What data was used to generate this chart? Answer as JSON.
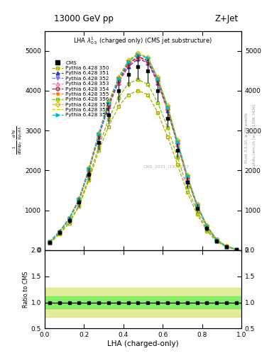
{
  "title_top": "13000 GeV pp",
  "title_right": "Z+Jet",
  "plot_title": "LHA $\\lambda^{1}_{0.5}$ (charged only) (CMS jet substructure)",
  "xlabel": "LHA (charged-only)",
  "ylabel_ratio": "Ratio to CMS",
  "right_label1": "Rivet 3.1.10, ≥ 2M events",
  "right_label2": "mcplots.cern.ch [arXiv:1306.3436]",
  "watermark": "CMS_2021_I1920187",
  "xlim": [
    0,
    1
  ],
  "ylim_main": [
    0,
    5500
  ],
  "ylim_ratio": [
    0.5,
    2.0
  ],
  "yticks_main": [
    0,
    1000,
    2000,
    3000,
    4000,
    5000
  ],
  "yticks_ratio": [
    0.5,
    1.0,
    1.5,
    2.0
  ],
  "lha_x": [
    0.025,
    0.075,
    0.125,
    0.175,
    0.225,
    0.275,
    0.325,
    0.375,
    0.425,
    0.475,
    0.525,
    0.575,
    0.625,
    0.675,
    0.725,
    0.775,
    0.825,
    0.875,
    0.925,
    0.975
  ],
  "cms_data": [
    200,
    450,
    750,
    1200,
    1900,
    2700,
    3400,
    4000,
    4400,
    4600,
    4500,
    4000,
    3300,
    2500,
    1700,
    1050,
    550,
    230,
    80,
    20
  ],
  "cms_err": [
    40,
    60,
    80,
    120,
    160,
    200,
    240,
    280,
    300,
    310,
    300,
    270,
    230,
    190,
    140,
    100,
    70,
    45,
    25,
    10
  ],
  "series": [
    {
      "label": "Pythia 6.428 350",
      "color": "#aaaa00",
      "linestyle": "--",
      "marker": "s",
      "markerfill": "none",
      "data": [
        170,
        400,
        680,
        1100,
        1750,
        2500,
        3100,
        3600,
        3900,
        4000,
        3900,
        3450,
        2850,
        2150,
        1450,
        900,
        480,
        210,
        75,
        18
      ]
    },
    {
      "label": "Pythia 6.428 351",
      "color": "#3333cc",
      "linestyle": "--",
      "marker": "^",
      "markerfill": "full",
      "data": [
        200,
        450,
        780,
        1250,
        2000,
        2850,
        3600,
        4200,
        4600,
        4800,
        4700,
        4200,
        3500,
        2650,
        1800,
        1100,
        580,
        250,
        88,
        22
      ]
    },
    {
      "label": "Pythia 6.428 352",
      "color": "#7777ee",
      "linestyle": "--",
      "marker": "v",
      "markerfill": "full",
      "data": [
        210,
        460,
        790,
        1270,
        2020,
        2880,
        3650,
        4250,
        4680,
        4860,
        4760,
        4260,
        3560,
        2700,
        1840,
        1130,
        600,
        260,
        92,
        23
      ]
    },
    {
      "label": "Pythia 6.428 353",
      "color": "#ff77aa",
      "linestyle": "--",
      "marker": "^",
      "markerfill": "none",
      "data": [
        205,
        455,
        785,
        1260,
        2010,
        2860,
        3620,
        4220,
        4650,
        4830,
        4730,
        4230,
        3530,
        2670,
        1820,
        1115,
        590,
        255,
        90,
        22
      ]
    },
    {
      "label": "Pythia 6.428 354",
      "color": "#cc2222",
      "linestyle": "--",
      "marker": "o",
      "markerfill": "none",
      "data": [
        208,
        458,
        788,
        1265,
        2015,
        2870,
        3640,
        4240,
        4670,
        4850,
        4750,
        4240,
        3540,
        2680,
        1830,
        1120,
        595,
        257,
        91,
        22
      ]
    },
    {
      "label": "Pythia 6.428 355",
      "color": "#ff7700",
      "linestyle": "--",
      "marker": "*",
      "markerfill": "full",
      "data": [
        215,
        465,
        800,
        1290,
        2050,
        2920,
        3700,
        4310,
        4740,
        4920,
        4820,
        4310,
        3600,
        2730,
        1860,
        1140,
        610,
        265,
        95,
        24
      ]
    },
    {
      "label": "Pythia 6.428 356",
      "color": "#88bb00",
      "linestyle": "--",
      "marker": "s",
      "markerfill": "none",
      "data": [
        185,
        420,
        710,
        1140,
        1820,
        2600,
        3280,
        3820,
        4180,
        4280,
        4160,
        3700,
        3080,
        2330,
        1580,
        975,
        520,
        230,
        82,
        20
      ]
    },
    {
      "label": "Pythia 6.428 357",
      "color": "#ddbb00",
      "linestyle": "--",
      "marker": "D",
      "markerfill": "none",
      "data": [
        218,
        468,
        805,
        1300,
        2060,
        2940,
        3720,
        4330,
        4760,
        4940,
        4840,
        4330,
        3620,
        2750,
        1875,
        1150,
        615,
        268,
        96,
        24
      ]
    },
    {
      "label": "Pythia 6.428 358",
      "color": "#bbdd00",
      "linestyle": "--",
      "marker": "None",
      "markerfill": "none",
      "data": [
        216,
        466,
        802,
        1295,
        2055,
        2930,
        3710,
        4320,
        4750,
        4930,
        4830,
        4320,
        3610,
        2740,
        1870,
        1145,
        612,
        266,
        95,
        24
      ]
    },
    {
      "label": "Pythia 6.428 359",
      "color": "#00bbcc",
      "linestyle": "--",
      "marker": ">",
      "markerfill": "full",
      "data": [
        212,
        462,
        796,
        1285,
        2045,
        2910,
        3690,
        4300,
        4730,
        4910,
        4810,
        4300,
        3590,
        2720,
        1860,
        1138,
        608,
        263,
        94,
        23
      ]
    }
  ],
  "ratio_band_inner_color": "#44ee44",
  "ratio_band_outer_color": "#ccdd44",
  "ratio_band_inner_alpha": 0.55,
  "ratio_band_outer_alpha": 0.55,
  "ratio_band_inner": [
    0.88,
    1.12
  ],
  "ratio_band_outer": [
    0.72,
    1.28
  ],
  "background_color": "#ffffff"
}
